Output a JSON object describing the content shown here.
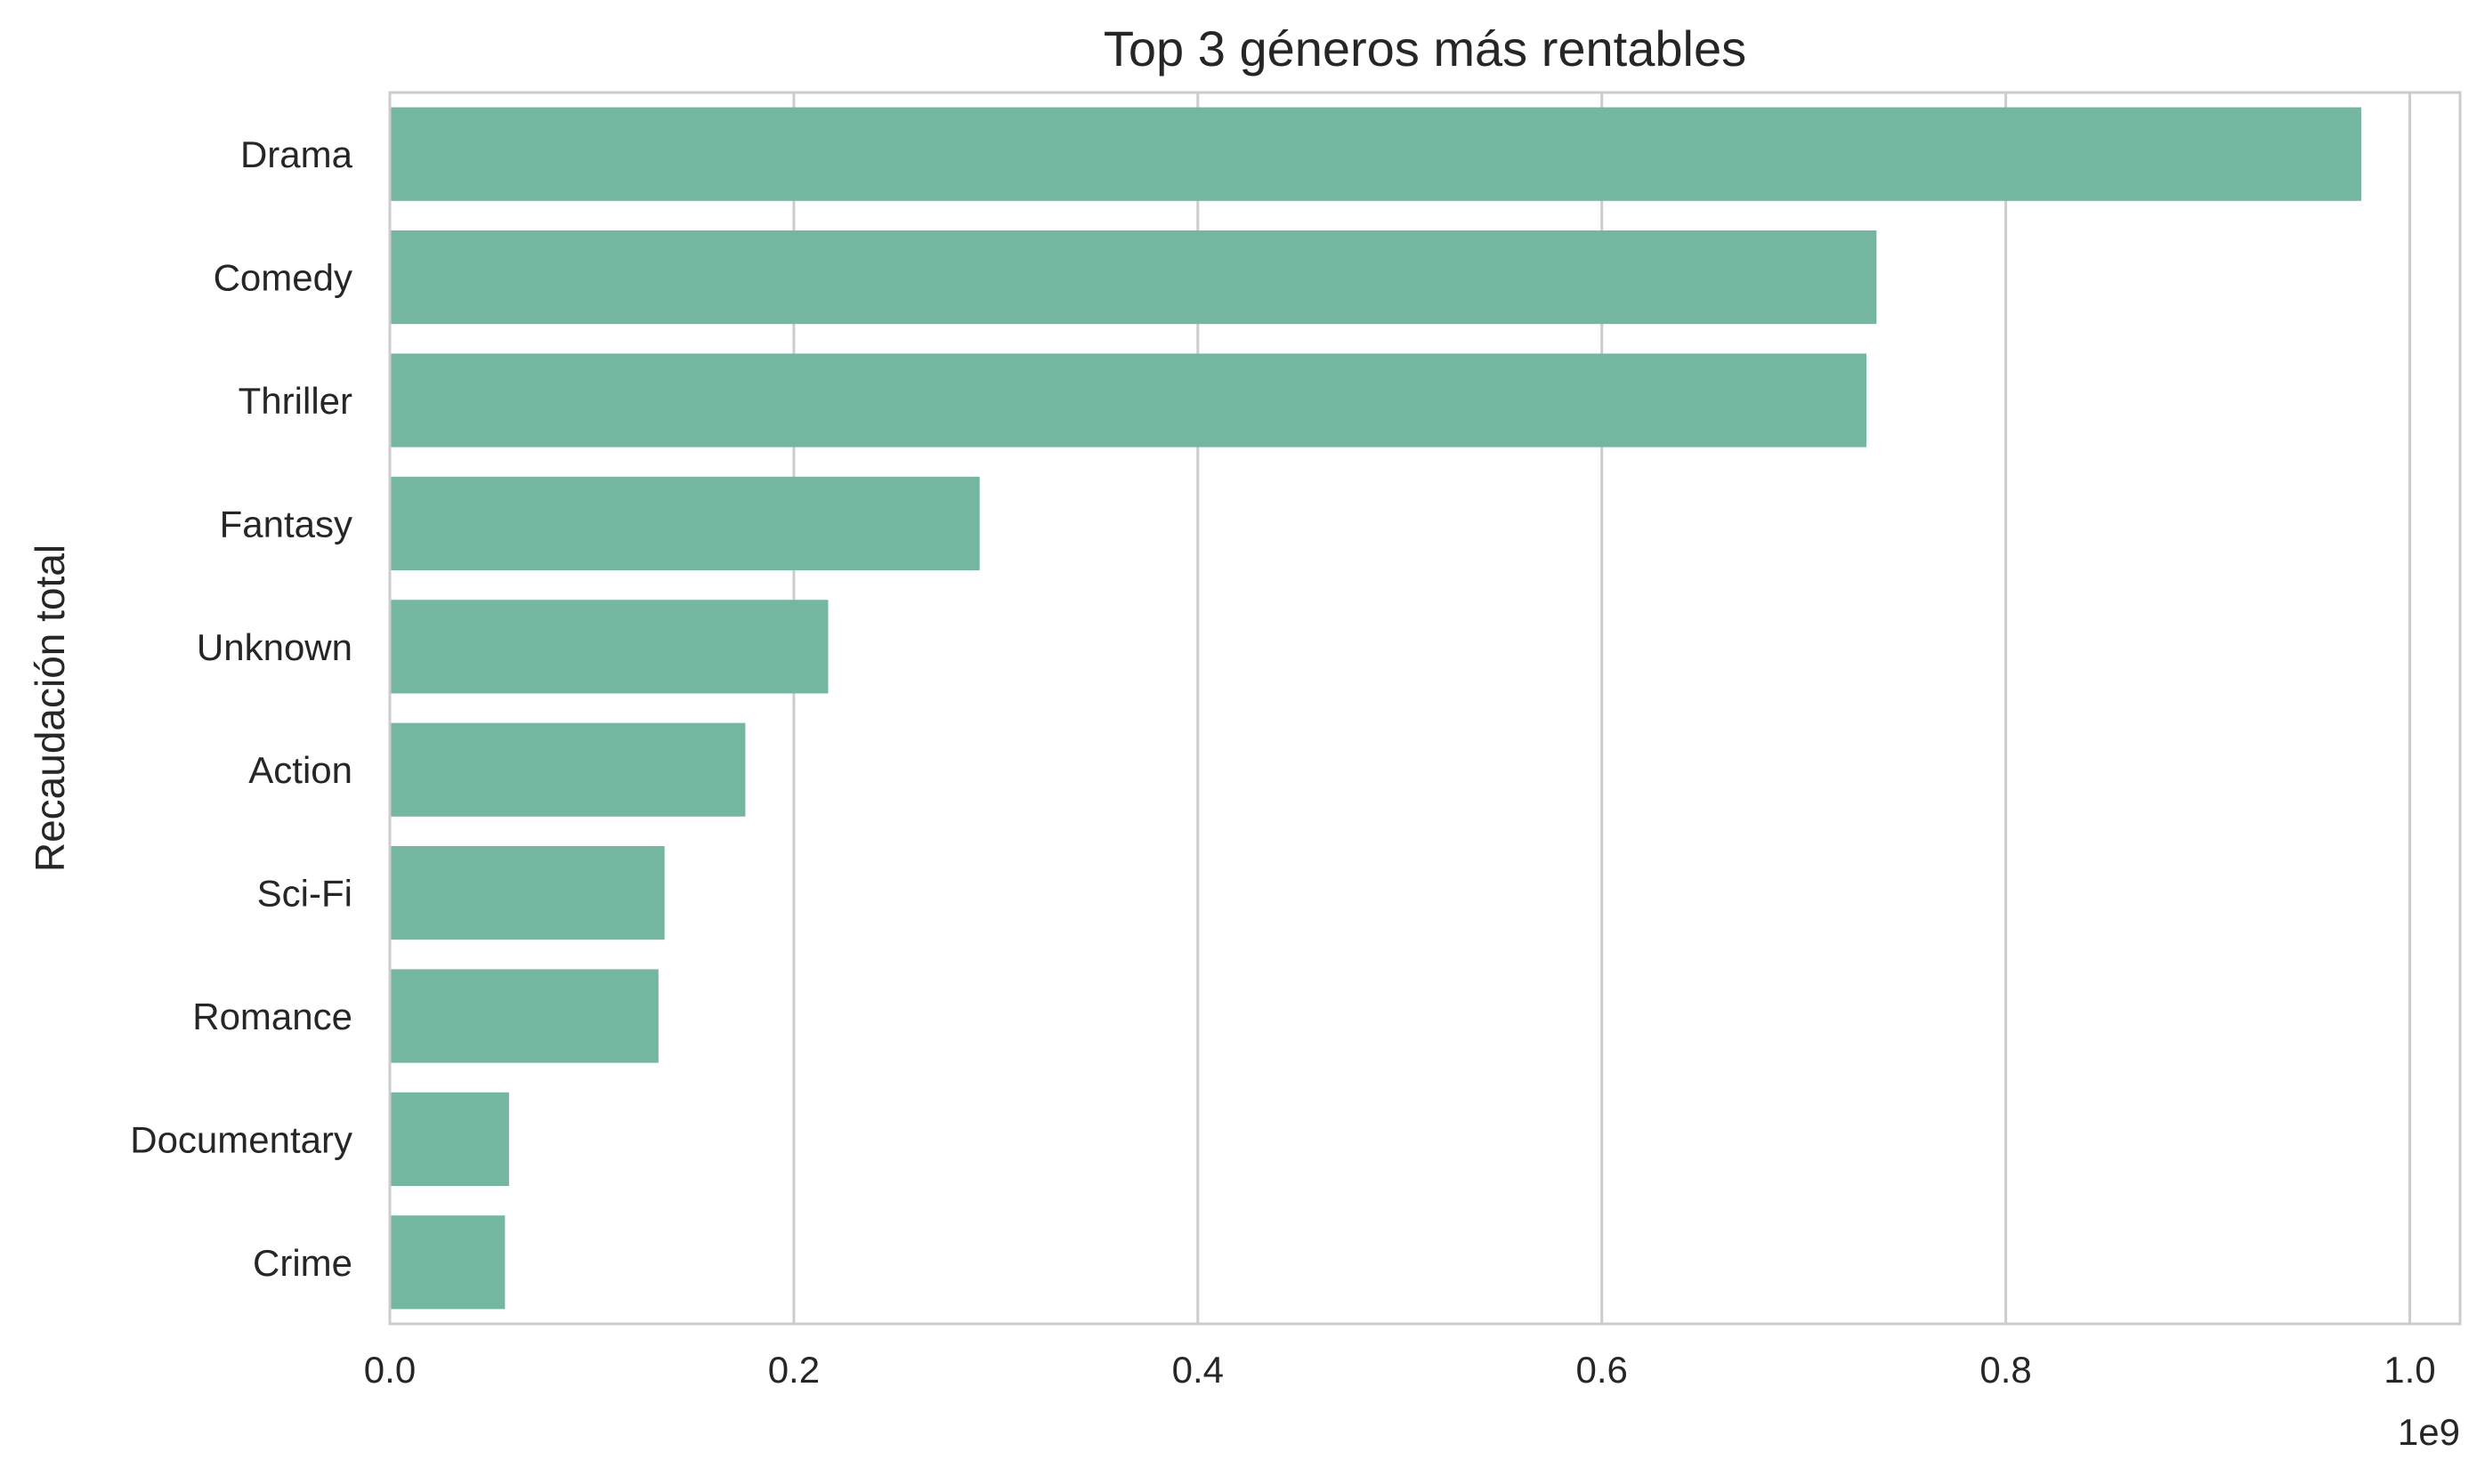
{
  "chart_data": {
    "type": "bar",
    "orientation": "horizontal",
    "title": "Top 3 géneros más rentables",
    "xlabel": "",
    "ylabel": "Recaudación total",
    "x_offset_label": "1e9",
    "categories": [
      "Drama",
      "Comedy",
      "Thriller",
      "Fantasy",
      "Unknown",
      "Action",
      "Sci-Fi",
      "Romance",
      "Documentary",
      "Crime"
    ],
    "values": [
      976000000,
      736000000,
      731000000,
      292000000,
      217000000,
      176000000,
      136000000,
      133000000,
      59000000,
      57000000
    ],
    "xlim": [
      0,
      1.0249
    ],
    "x_scale": 1000000000,
    "x_ticks": [
      0.0,
      0.2,
      0.4,
      0.6,
      0.8,
      1.0
    ],
    "x_tick_labels": [
      "0.0",
      "0.2",
      "0.4",
      "0.6",
      "0.8",
      "1.0"
    ],
    "grid": "vertical",
    "legend": "none",
    "colors": {
      "bar": "#74b6a0",
      "grid": "#cccccc",
      "spine": "#cccccc",
      "text": "#262626"
    }
  }
}
